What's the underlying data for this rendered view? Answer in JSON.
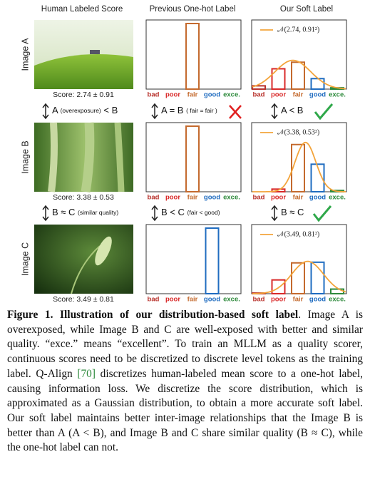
{
  "headers": [
    "Human Labeled Score",
    "Previous One-hot Label",
    "Our Soft Label"
  ],
  "categories": [
    "bad",
    "poor",
    "fair",
    "good",
    "exce."
  ],
  "category_colors": [
    "#b8322c",
    "#d92a2a",
    "#c46a2e",
    "#1f6cc0",
    "#2e8a3c"
  ],
  "curve_color": "#f3a43b",
  "ylim": [
    0,
    1
  ],
  "rows": [
    {
      "image_label": "Image A",
      "score": "Score: 2.74 ± 0.91",
      "onehot": {
        "values": [
          0,
          0,
          1,
          0,
          0
        ]
      },
      "soft": {
        "legend": "𝒩(2.74, 0.91²)",
        "mean": 2.74,
        "std": 0.91,
        "values": [
          0.05,
          0.31,
          0.41,
          0.16,
          0.02
        ]
      }
    },
    {
      "image_label": "Image B",
      "score": "Score: 3.38 ± 0.53",
      "onehot": {
        "values": [
          0,
          0,
          1,
          0,
          0
        ]
      },
      "soft": {
        "legend": "𝒩(3.38, 0.53²)",
        "mean": 3.38,
        "std": 0.53,
        "values": [
          0,
          0.04,
          0.72,
          0.42,
          0.02
        ]
      }
    },
    {
      "image_label": "Image C",
      "score": "Score: 3.49 ± 0.81",
      "onehot": {
        "values": [
          0,
          0,
          0,
          1,
          0
        ]
      },
      "soft": {
        "legend": "𝒩(3.49, 0.81²)",
        "mean": 3.49,
        "std": 0.81,
        "values": [
          0.01,
          0.21,
          0.47,
          0.48,
          0.07
        ]
      }
    }
  ],
  "comparisons": [
    [
      {
        "left": "A",
        "note": "(overexposure)",
        "right": "< B"
      },
      {
        "left": "A = B",
        "note": "( fair = fair )"
      },
      {
        "left": "A < B"
      }
    ],
    [
      {
        "left": "B ≈ C",
        "note": "(similar quality)"
      },
      {
        "left": "B < C",
        "note": "(fair < good)"
      },
      {
        "left": "B ≈ C"
      }
    ]
  ],
  "caption": {
    "label": "Figure 1.",
    "bold": "Illustration of our distribution-based soft label",
    "text1": ". Image A is overexposed, while Image B and C are well-exposed with better and similar quality. “exce.” means “excellent”. To train an MLLM as a quality scorer, continuous scores need to be discretized to discrete level tokens as the training label. Q-Align ",
    "ref": "[70]",
    "text2": " discretizes human-labeled mean score to a one-hot label, causing information loss. We discretize the score distribution, which is approximated as a Gaussian distribution, to obtain a more accurate soft label. Our soft label maintains better inter-image relationships that the Image B is better than A (A < B), and Image B and C share similar quality (B ≈ C), while the one-hot label can not."
  }
}
